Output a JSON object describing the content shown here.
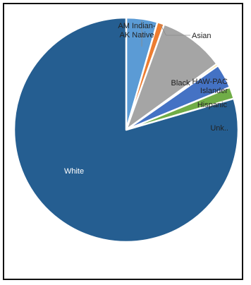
{
  "chart_data": {
    "type": "pie",
    "title": "",
    "slices": [
      {
        "label": "AM Indian- AK Native",
        "lines": [
          "AM Indian-",
          "AK Native"
        ],
        "value": 4.5,
        "color": "#5b9bd5"
      },
      {
        "label": "Asian",
        "lines": [
          "Asian"
        ],
        "value": 1.0,
        "color": "#ed7d31"
      },
      {
        "label": "Black",
        "lines": [
          "Black"
        ],
        "value": 9.5,
        "color": "#a5a5a5"
      },
      {
        "label": "HAW-PAC Islander",
        "lines": [
          "HAW-PAC",
          "Islander"
        ],
        "value": 0.3,
        "color": "#ffc000"
      },
      {
        "label": "Hispanic",
        "lines": [
          "Hispanic"
        ],
        "value": 3.5,
        "color": "#4472c4"
      },
      {
        "label": "Unk..",
        "lines": [
          "Unk.."
        ],
        "value": 1.7,
        "color": "#70ad47"
      },
      {
        "label": "White",
        "lines": [
          "White"
        ],
        "value": 79.5,
        "color": "#255e91"
      }
    ]
  }
}
